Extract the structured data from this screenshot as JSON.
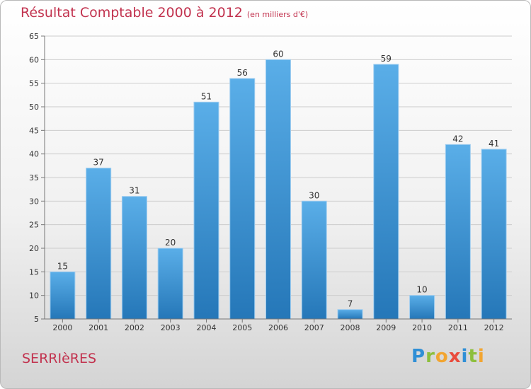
{
  "header": {
    "title": "Résultat Comptable 2000 à 2012",
    "subtitle": "(en milliers d'€)"
  },
  "commune": "SERRIèRES",
  "logo": {
    "letters": [
      "P",
      "r",
      "o",
      "x",
      "i",
      "t",
      "i"
    ]
  },
  "colors": {
    "bar": "#3d93d6",
    "title": "#c2334f",
    "grid": "#cccccc"
  },
  "chart_data": {
    "type": "bar",
    "title": "Résultat Comptable 2000 à 2012",
    "subtitle": "(en milliers d'€)",
    "categories": [
      "2000",
      "2001",
      "2002",
      "2003",
      "2004",
      "2005",
      "2006",
      "2007",
      "2008",
      "2009",
      "2010",
      "2011",
      "2012"
    ],
    "values": [
      15,
      37,
      31,
      20,
      51,
      56,
      60,
      30,
      7,
      59,
      10,
      42,
      41
    ],
    "ylim": [
      5,
      65
    ],
    "yticks": [
      5,
      10,
      15,
      20,
      25,
      30,
      35,
      40,
      45,
      50,
      55,
      60,
      65
    ],
    "grid": true,
    "data_labels": true
  }
}
